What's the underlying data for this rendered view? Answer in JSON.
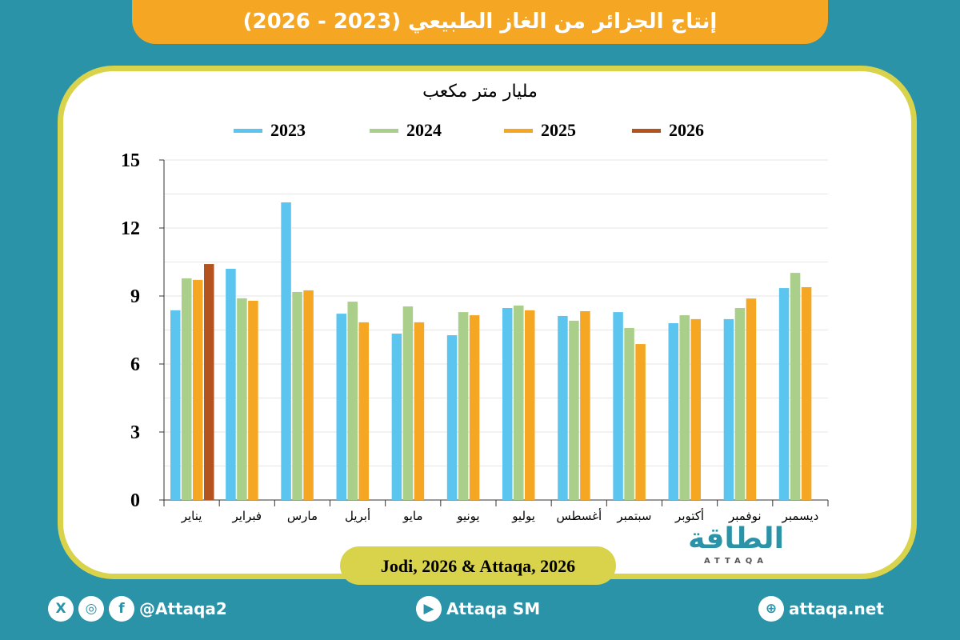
{
  "title": "إنتاج الجزائر من الغاز الطبيعي (2023 - 2026)",
  "source": "Jodi, 2026 & Attaqa, 2026",
  "logo": {
    "text": "الطاقة",
    "sub": "ATTAQA"
  },
  "footer": {
    "social_handle": "@Attaqa2",
    "youtube": "Attaqa SM",
    "website": "attaqa.net"
  },
  "chart_data": {
    "type": "bar",
    "ylabel": "مليار متر مكعب",
    "ylim": [
      0,
      15
    ],
    "yticks": [
      0,
      3,
      6,
      9,
      12,
      15
    ],
    "grid": true,
    "legend_position": "top",
    "categories": [
      "يناير",
      "فبراير",
      "مارس",
      "أبريل",
      "مايو",
      "يونيو",
      "يوليو",
      "أغسطس",
      "سبتمبر",
      "أكتوبر",
      "نوفمبر",
      "ديسمبر"
    ],
    "series": [
      {
        "name": "2023",
        "color": "#5bc5ef",
        "values": [
          8.37,
          10.2,
          13.13,
          8.22,
          7.34,
          7.27,
          8.47,
          8.12,
          8.29,
          7.8,
          7.98,
          9.35
        ]
      },
      {
        "name": "2024",
        "color": "#a9cf8a",
        "values": [
          9.78,
          8.9,
          9.18,
          8.75,
          8.54,
          8.29,
          8.58,
          7.91,
          7.59,
          8.15,
          8.47,
          10.02
        ]
      },
      {
        "name": "2025",
        "color": "#f5a623",
        "values": [
          9.71,
          8.79,
          9.25,
          7.84,
          7.84,
          8.15,
          8.37,
          8.33,
          6.88,
          7.98,
          8.89,
          9.39
        ]
      },
      {
        "name": "2026",
        "color": "#b5531f",
        "values": [
          10.41,
          null,
          null,
          null,
          null,
          null,
          null,
          null,
          null,
          null,
          null,
          null
        ]
      }
    ]
  }
}
